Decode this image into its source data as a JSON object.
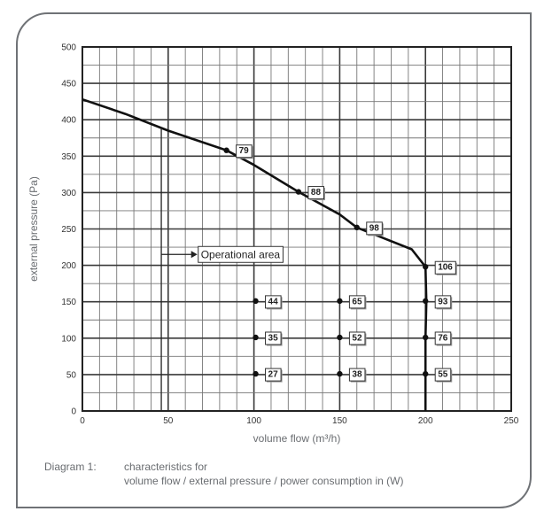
{
  "chart_data": {
    "type": "line",
    "xlabel": "volume flow (m³/h)",
    "ylabel": "external pressure (Pa)",
    "xlim": [
      0,
      250
    ],
    "ylim": [
      0,
      500
    ],
    "x_ticks": [
      0,
      50,
      100,
      150,
      200,
      250
    ],
    "y_ticks": [
      0,
      50,
      100,
      150,
      200,
      250,
      300,
      350,
      400,
      450,
      500
    ],
    "grid": true,
    "series": [
      {
        "points": [
          [
            0,
            428
          ],
          [
            25,
            408
          ],
          [
            50,
            385
          ],
          [
            84,
            358
          ],
          [
            100,
            338
          ],
          [
            126,
            301
          ],
          [
            150,
            270
          ],
          [
            160,
            252
          ],
          [
            175,
            238
          ],
          [
            192,
            222
          ],
          [
            200,
            198
          ],
          [
            200.5,
            150
          ],
          [
            200,
            100
          ],
          [
            200,
            50
          ],
          [
            200,
            0
          ]
        ]
      }
    ],
    "labeled_points": [
      {
        "x": 84,
        "y": 358,
        "label": "79"
      },
      {
        "x": 126,
        "y": 301,
        "label": "88"
      },
      {
        "x": 160,
        "y": 252,
        "label": "98"
      },
      {
        "x": 200,
        "y": 198,
        "label": "106"
      },
      {
        "x": 101,
        "y": 151,
        "label": "44"
      },
      {
        "x": 150,
        "y": 151,
        "label": "65"
      },
      {
        "x": 200,
        "y": 151,
        "label": "93"
      },
      {
        "x": 101,
        "y": 101,
        "label": "35"
      },
      {
        "x": 150,
        "y": 101,
        "label": "52"
      },
      {
        "x": 200,
        "y": 101,
        "label": "76"
      },
      {
        "x": 101,
        "y": 51,
        "label": "27"
      },
      {
        "x": 150,
        "y": 51,
        "label": "38"
      },
      {
        "x": 200,
        "y": 51,
        "label": "55"
      }
    ],
    "annotation": {
      "text": "Operational area",
      "bracket_x": 46,
      "bracket_y_top": 390,
      "bracket_y_bottom": 0,
      "arrow_y": 215,
      "arrow_x_end": 67
    }
  },
  "caption": {
    "label": "Diagram 1:",
    "line1": "characteristics for",
    "line2": "volume flow / external pressure / power consumption in (W)"
  }
}
